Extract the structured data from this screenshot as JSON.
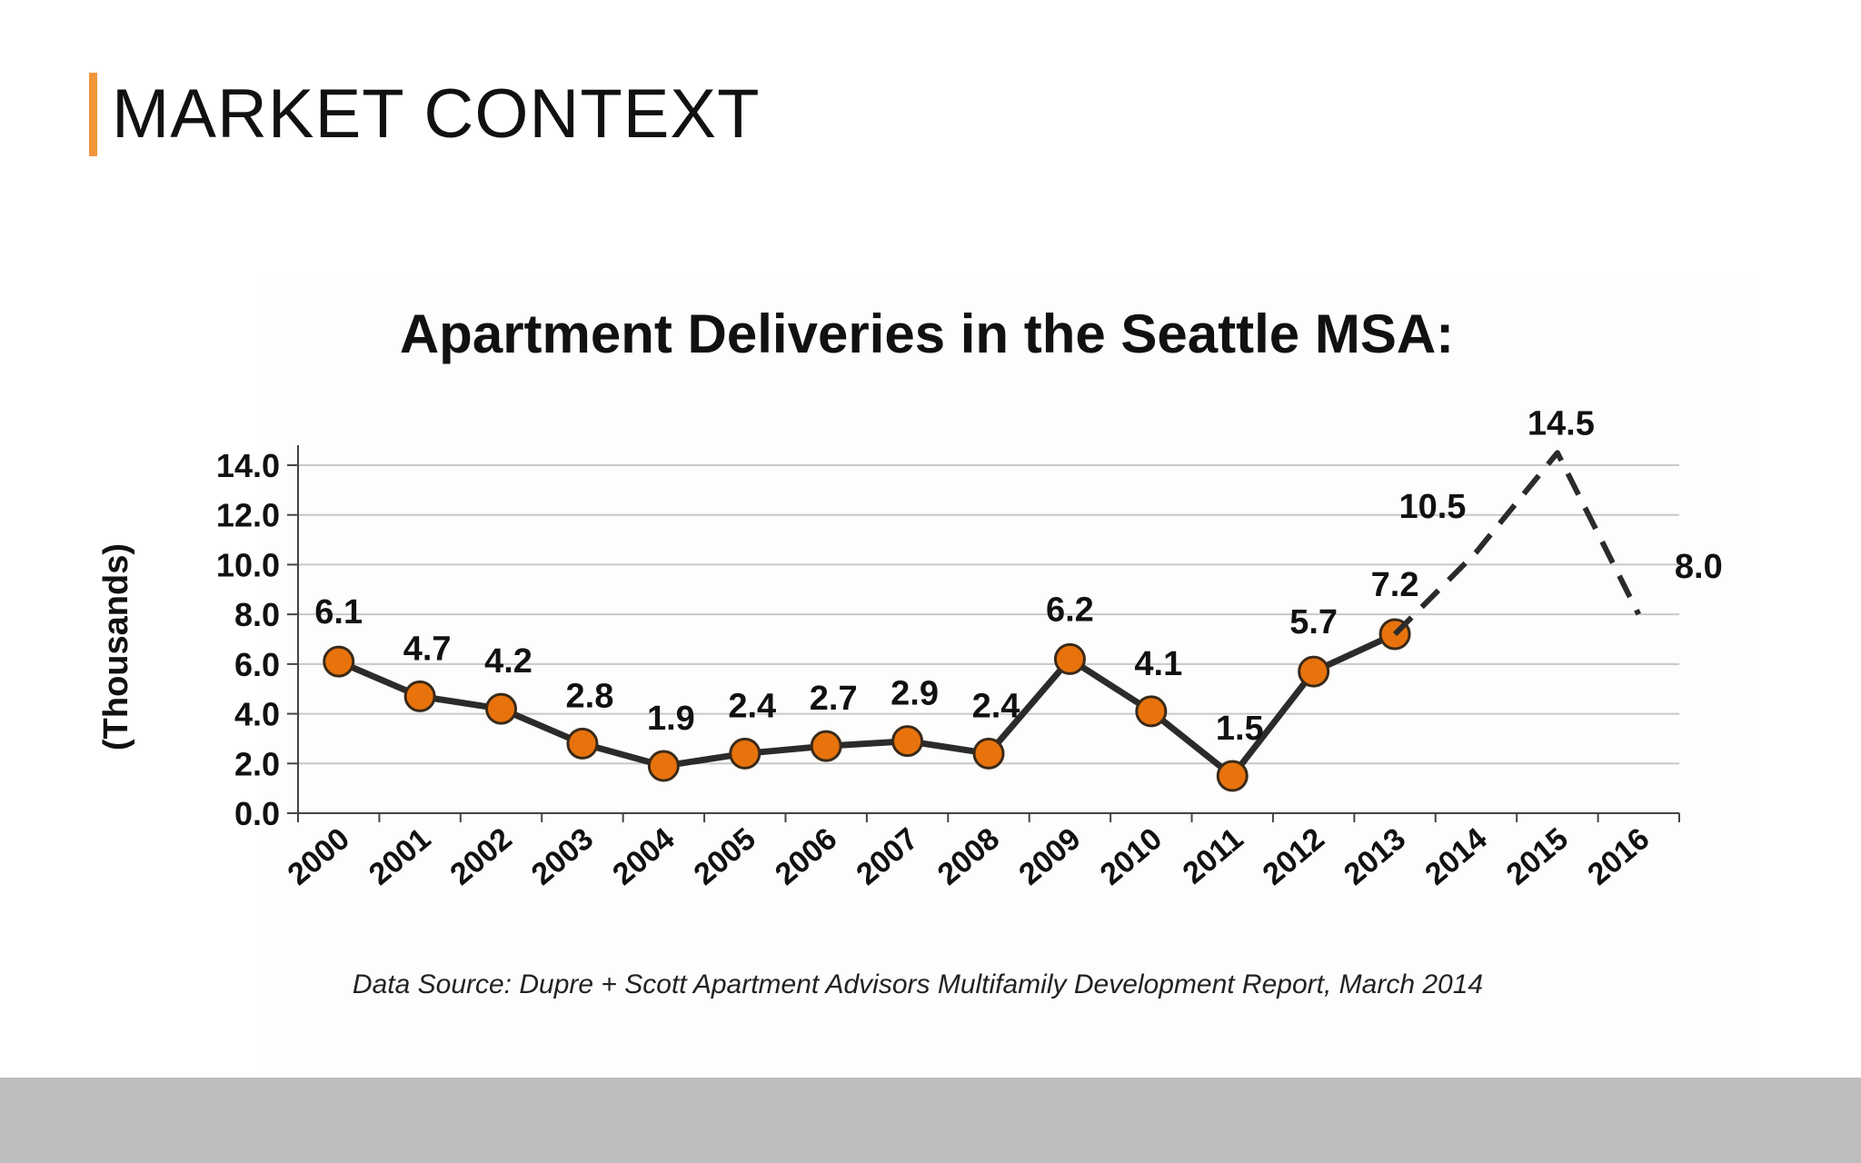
{
  "slide": {
    "title": "MARKET CONTEXT",
    "accent_color": "#f0953a",
    "footer_color": "#bfbdbe"
  },
  "chart_data": {
    "type": "line",
    "title": "Apartment Deliveries in the Seattle MSA:",
    "ylabel": "(Thousands)",
    "xlabel": "",
    "source": "Data Source: Dupre + Scott Apartment Advisors Multifamily Development Report, March 2014",
    "ylim": [
      0,
      15
    ],
    "yticks": [
      "0.0",
      "2.0",
      "4.0",
      "6.0",
      "8.0",
      "10.0",
      "12.0",
      "14.0"
    ],
    "grid": true,
    "categories": [
      "2000",
      "2001",
      "2002",
      "2003",
      "2004",
      "2005",
      "2006",
      "2007",
      "2008",
      "2009",
      "2010",
      "2011",
      "2012",
      "2013",
      "2014",
      "2015",
      "2016"
    ],
    "series": [
      {
        "style": "solid-with-markers",
        "line_color": "#2b2b2b",
        "marker_color": "#e8730c",
        "x": [
          "2000",
          "2001",
          "2002",
          "2003",
          "2004",
          "2005",
          "2006",
          "2007",
          "2008",
          "2009",
          "2010",
          "2011",
          "2012",
          "2013"
        ],
        "values": [
          6.1,
          4.7,
          4.2,
          2.8,
          1.9,
          2.4,
          2.7,
          2.9,
          2.4,
          6.2,
          4.1,
          1.5,
          5.7,
          7.2
        ],
        "labels": [
          "6.1",
          "4.7",
          "4.2",
          "2.8",
          "1.9",
          "2.4",
          "2.7",
          "2.9",
          "2.4",
          "6.2",
          "4.1",
          "1.5",
          "5.7",
          "7.2"
        ]
      },
      {
        "style": "dashed",
        "line_color": "#2b2b2b",
        "x": [
          "2013",
          "2014",
          "2015",
          "2016"
        ],
        "values": [
          7.2,
          10.5,
          14.5,
          8.0
        ],
        "labels": [
          "",
          "10.5",
          "14.5",
          "8.0"
        ]
      }
    ]
  }
}
